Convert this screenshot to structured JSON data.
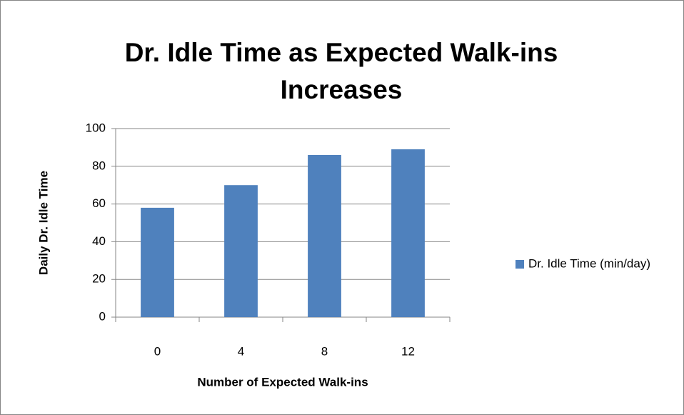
{
  "chart_data": {
    "type": "bar",
    "title": "Dr. Idle Time as Expected Walk-ins Increases",
    "x_label": "Number of Expected Walk-ins",
    "y_label": "Daily Dr. Idle Time",
    "categories": [
      "0",
      "4",
      "8",
      "12"
    ],
    "series": [
      {
        "name": "Dr. Idle Time (min/day)",
        "color": "#4f81bd",
        "values": [
          58,
          70,
          86,
          89
        ]
      }
    ],
    "ylim": [
      0,
      100
    ],
    "yticks": [
      0,
      20,
      40,
      60,
      80,
      100
    ],
    "grid": true,
    "legend": "right"
  }
}
